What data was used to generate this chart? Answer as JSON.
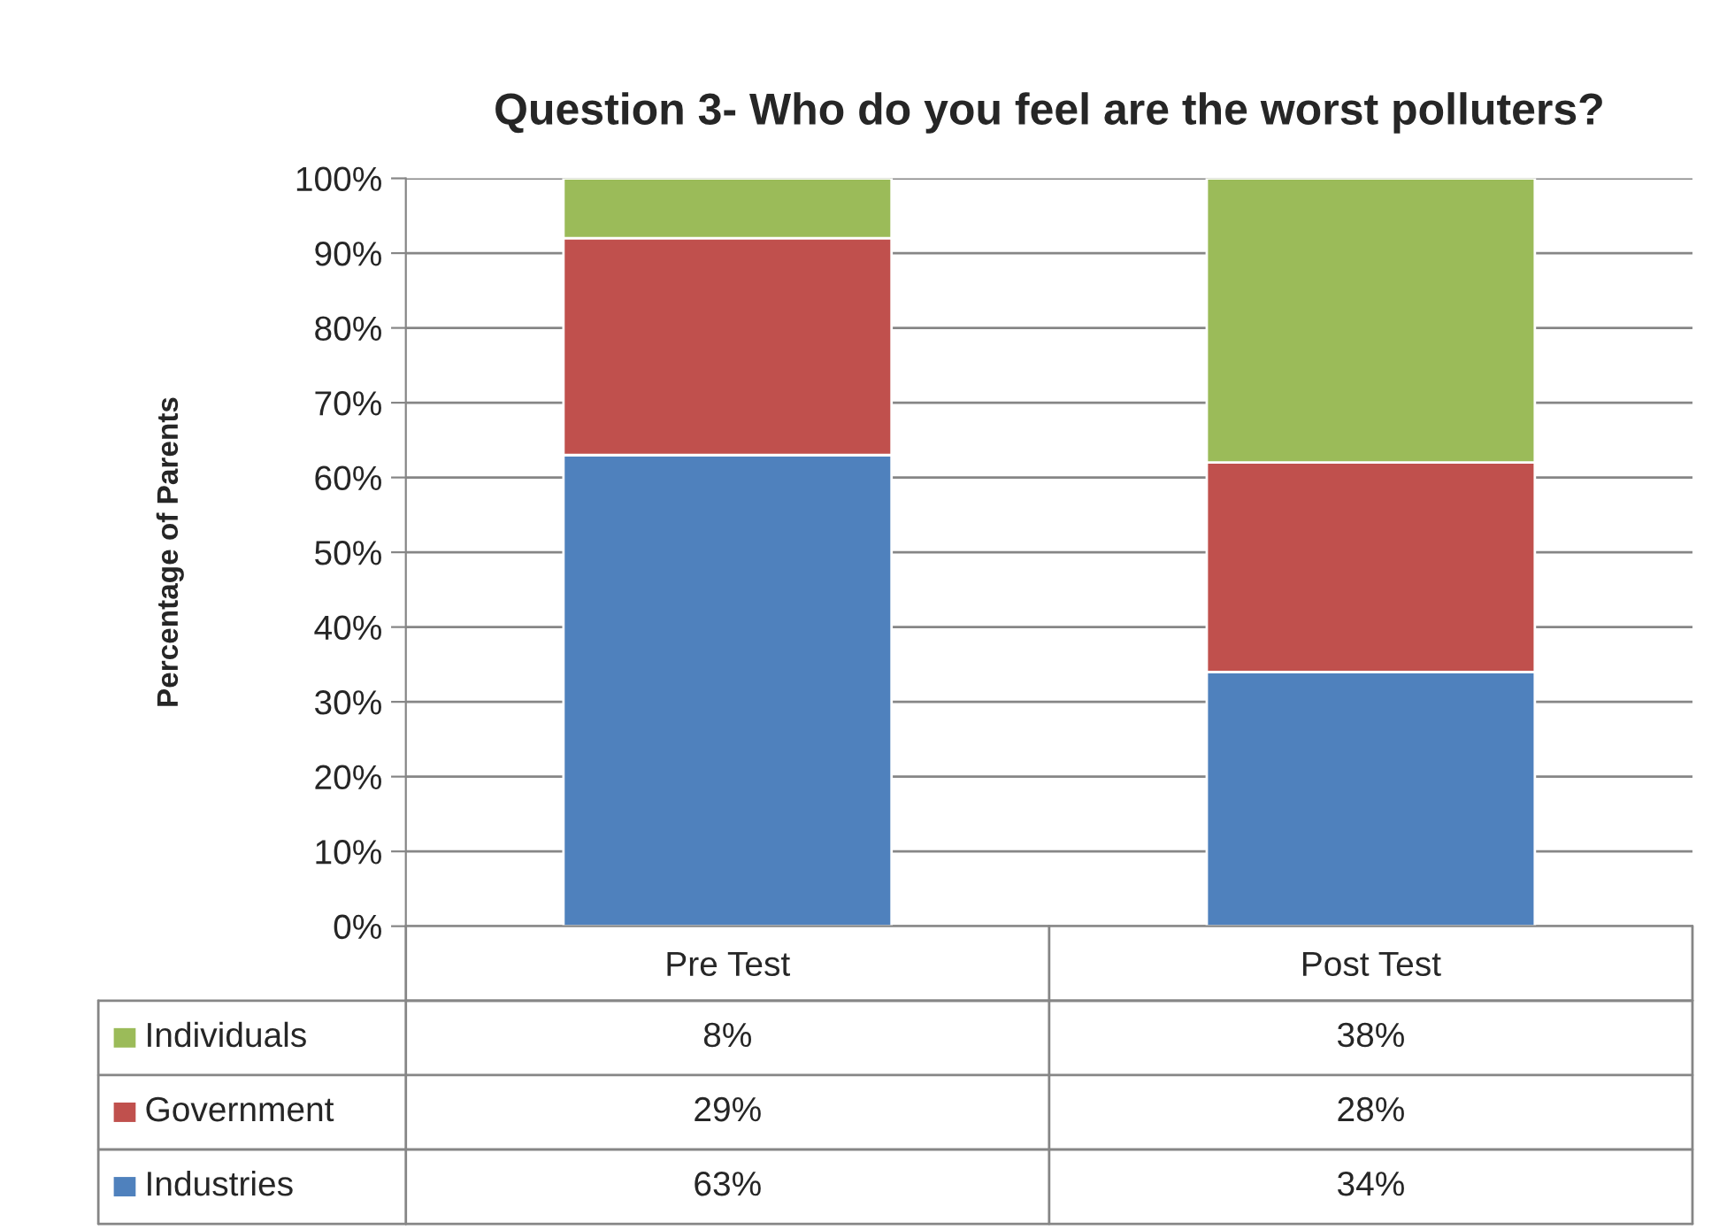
{
  "chart_data": {
    "type": "bar",
    "title": "Question 3- Who do you feel are the worst polluters?",
    "ylabel": "Percentage of Parents",
    "categories": [
      "Pre Test",
      "Post Test"
    ],
    "stacked": true,
    "series": [
      {
        "name": "Industries",
        "color": "#4f81bd",
        "values": [
          63,
          34
        ],
        "value_labels": [
          "63%",
          "34%"
        ]
      },
      {
        "name": "Government",
        "color": "#c0504d",
        "values": [
          29,
          28
        ],
        "value_labels": [
          "29%",
          "28%"
        ]
      },
      {
        "name": "Individuals",
        "color": "#9bbb59",
        "values": [
          8,
          38
        ],
        "value_labels": [
          "8%",
          "38%"
        ]
      }
    ],
    "ylim": [
      0,
      100
    ],
    "yticks": [
      {
        "value": 0,
        "label": "0%"
      },
      {
        "value": 10,
        "label": "10%"
      },
      {
        "value": 20,
        "label": "20%"
      },
      {
        "value": 30,
        "label": "30%"
      },
      {
        "value": 40,
        "label": "40%"
      },
      {
        "value": 50,
        "label": "50%"
      },
      {
        "value": 60,
        "label": "60%"
      },
      {
        "value": 70,
        "label": "70%"
      },
      {
        "value": 80,
        "label": "80%"
      },
      {
        "value": 90,
        "label": "90%"
      },
      {
        "value": 100,
        "label": "100%"
      }
    ],
    "grid": "y",
    "legend": "bottom"
  }
}
